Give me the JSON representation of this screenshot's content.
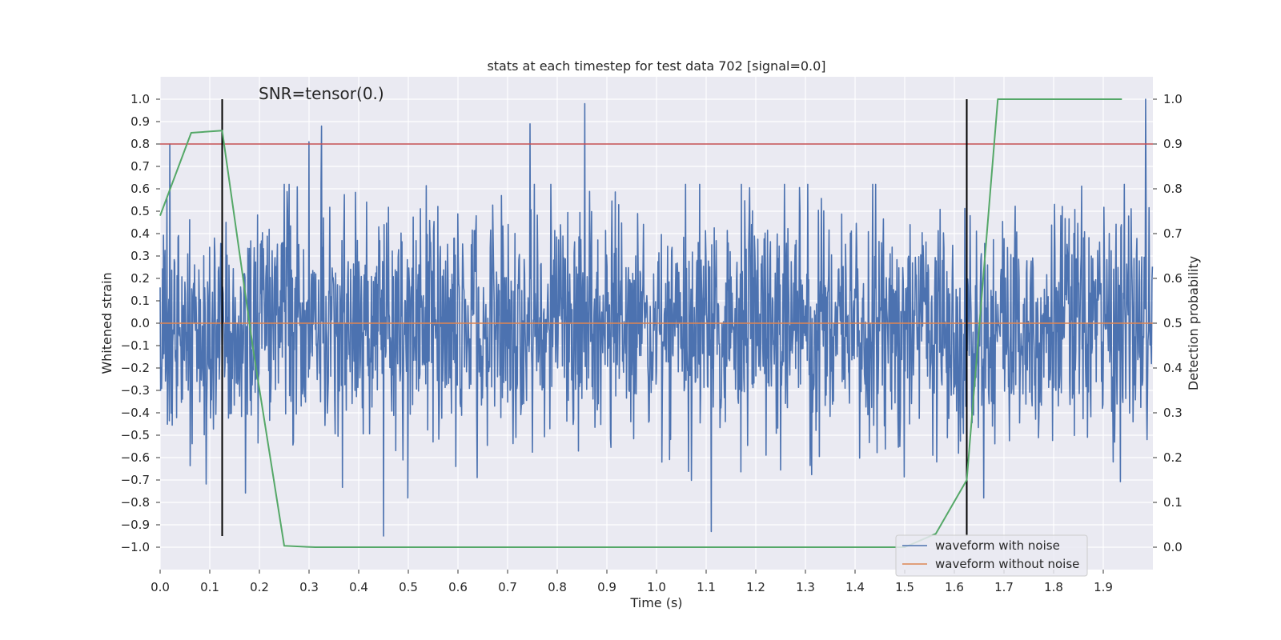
{
  "chart_data": {
    "type": "line",
    "title": "stats at each timestep for test data 702 [signal=0.0]",
    "annotation": "SNR=tensor(0.)",
    "xlabel": "Time (s)",
    "ylabel": "Whitened strain",
    "y2label": "Detection probability",
    "xlim": [
      0.0,
      2.0
    ],
    "ylim": [
      -1.1,
      1.1
    ],
    "y2lim": [
      -0.05,
      1.05
    ],
    "xticks": [
      "0.0",
      "0.1",
      "0.2",
      "0.3",
      "0.4",
      "0.5",
      "0.6",
      "0.7",
      "0.8",
      "0.9",
      "1.0",
      "1.1",
      "1.2",
      "1.3",
      "1.4",
      "1.5",
      "1.6",
      "1.7",
      "1.8",
      "1.9"
    ],
    "yticks": [
      "1.0",
      "0.9",
      "0.8",
      "0.7",
      "0.6",
      "0.5",
      "0.4",
      "0.3",
      "0.2",
      "0.1",
      "0.0",
      "−0.1",
      "−0.2",
      "−0.3",
      "−0.4",
      "−0.5",
      "−0.6",
      "−0.7",
      "−0.8",
      "−0.9",
      "−1.0"
    ],
    "y2ticks": [
      "1.0",
      "0.9",
      "0.8",
      "0.7",
      "0.6",
      "0.5",
      "0.4",
      "0.3",
      "0.2",
      "0.1",
      "0.0"
    ],
    "threshold": 0.8,
    "vlines": [
      0.125,
      1.625
    ],
    "vline_range": [
      -0.95,
      1.0
    ],
    "grid": true,
    "legend_position": "lower-right",
    "legend": [
      "waveform with noise",
      "waveform without noise"
    ],
    "series": [
      {
        "name": "waveform with noise",
        "color": "#4c72b0",
        "axis": "left",
        "sample_count": 2048,
        "duration": 2.0,
        "spread": 0.26,
        "peak_x": [
          0.02,
          0.3,
          0.325,
          0.45,
          0.745,
          0.855,
          1.11,
          1.985
        ],
        "peak_y": [
          0.8,
          0.81,
          0.88,
          -0.95,
          0.89,
          0.98,
          -0.93,
          1.0
        ]
      },
      {
        "name": "waveform without noise",
        "color": "#dd8452",
        "axis": "left",
        "x": [
          0.0,
          2.0
        ],
        "y": [
          0.0,
          0.0
        ]
      },
      {
        "name": "detection probability",
        "color": "#55a868",
        "axis": "right",
        "x": [
          0.0,
          0.0625,
          0.125,
          0.1875,
          0.25,
          0.3125,
          0.375,
          0.4375,
          0.5,
          0.5625,
          0.625,
          0.6875,
          0.75,
          0.8125,
          0.875,
          0.9375,
          1.0,
          1.0625,
          1.125,
          1.1875,
          1.25,
          1.3125,
          1.375,
          1.4375,
          1.5,
          1.5625,
          1.625,
          1.6875,
          1.75,
          1.8125,
          1.875,
          1.9375
        ],
        "y": [
          0.74,
          0.925,
          0.93,
          0.44,
          0.003,
          0.0,
          0.0,
          0.0,
          0.0,
          0.0,
          0.0,
          0.0,
          0.0,
          0.0,
          0.0,
          0.0,
          0.0,
          0.0,
          0.0,
          0.0,
          0.0,
          0.0,
          0.0,
          0.0,
          0.0,
          0.03,
          0.15,
          1.0,
          1.0,
          1.0,
          1.0,
          1.0
        ]
      }
    ],
    "colors": {
      "threshold": "#c44e52",
      "vline": "#000000",
      "plot_background": "#eaeaf2",
      "grid": "#ffffff"
    }
  }
}
